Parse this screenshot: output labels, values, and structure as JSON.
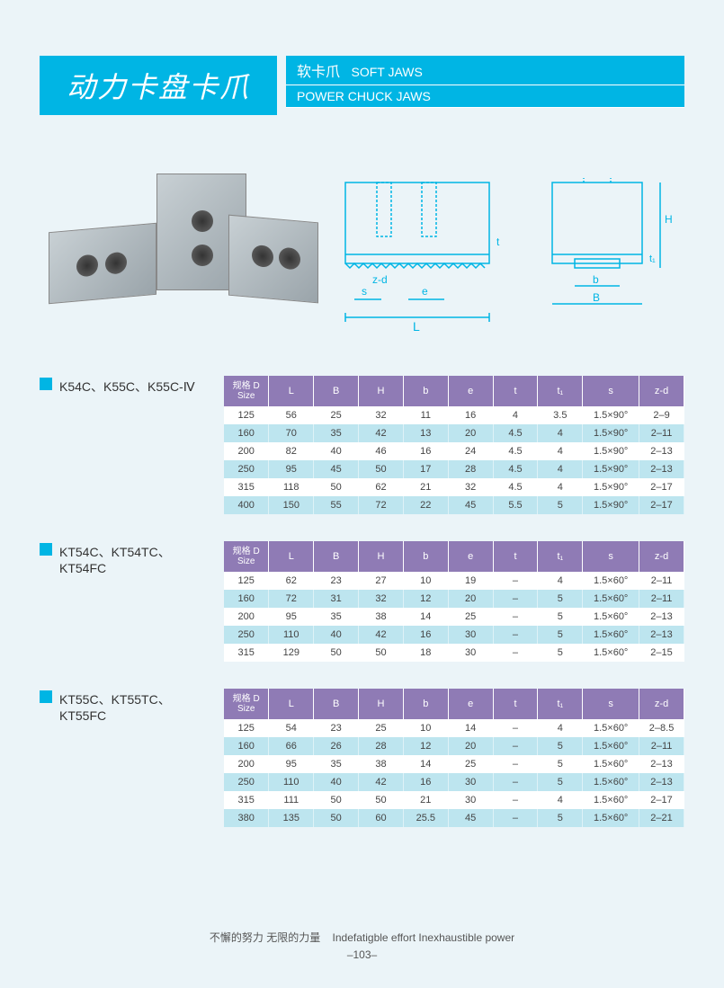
{
  "header": {
    "main_title": "动力卡盘卡爪",
    "sub1_cn": "软卡爪",
    "sub1_en": "SOFT JAWS",
    "sub2": "POWER CHUCK JAWS"
  },
  "diagram_labels": {
    "t": "t",
    "zd": "z-d",
    "s": "s",
    "e": "e",
    "L": "L",
    "H": "H",
    "t1": "t₁",
    "b": "b",
    "B": "B"
  },
  "tables": [
    {
      "title": "K54C、K55C、K55C-Ⅳ",
      "columns": [
        "规格 D\nSize",
        "L",
        "B",
        "H",
        "b",
        "e",
        "t",
        "t₁",
        "s",
        "z-d"
      ],
      "col_widths": [
        "46",
        "46",
        "46",
        "46",
        "46",
        "46",
        "46",
        "46",
        "58",
        "46"
      ],
      "rows": [
        [
          "125",
          "56",
          "25",
          "32",
          "11",
          "16",
          "4",
          "3.5",
          "1.5×90°",
          "2–9"
        ],
        [
          "160",
          "70",
          "35",
          "42",
          "13",
          "20",
          "4.5",
          "4",
          "1.5×90°",
          "2–11"
        ],
        [
          "200",
          "82",
          "40",
          "46",
          "16",
          "24",
          "4.5",
          "4",
          "1.5×90°",
          "2–13"
        ],
        [
          "250",
          "95",
          "45",
          "50",
          "17",
          "28",
          "4.5",
          "4",
          "1.5×90°",
          "2–13"
        ],
        [
          "315",
          "118",
          "50",
          "62",
          "21",
          "32",
          "4.5",
          "4",
          "1.5×90°",
          "2–17"
        ],
        [
          "400",
          "150",
          "55",
          "72",
          "22",
          "45",
          "5.5",
          "5",
          "1.5×90°",
          "2–17"
        ]
      ]
    },
    {
      "title": "KT54C、KT54TC、KT54FC",
      "columns": [
        "规格 D\nSize",
        "L",
        "B",
        "H",
        "b",
        "e",
        "t",
        "t₁",
        "s",
        "z-d"
      ],
      "col_widths": [
        "46",
        "46",
        "46",
        "46",
        "46",
        "46",
        "46",
        "46",
        "58",
        "46"
      ],
      "rows": [
        [
          "125",
          "62",
          "23",
          "27",
          "10",
          "19",
          "–",
          "4",
          "1.5×60°",
          "2–11"
        ],
        [
          "160",
          "72",
          "31",
          "32",
          "12",
          "20",
          "–",
          "5",
          "1.5×60°",
          "2–11"
        ],
        [
          "200",
          "95",
          "35",
          "38",
          "14",
          "25",
          "–",
          "5",
          "1.5×60°",
          "2–13"
        ],
        [
          "250",
          "110",
          "40",
          "42",
          "16",
          "30",
          "–",
          "5",
          "1.5×60°",
          "2–13"
        ],
        [
          "315",
          "129",
          "50",
          "50",
          "18",
          "30",
          "–",
          "5",
          "1.5×60°",
          "2–15"
        ]
      ]
    },
    {
      "title": "KT55C、KT55TC、KT55FC",
      "columns": [
        "规格 D\nSize",
        "L",
        "B",
        "H",
        "b",
        "e",
        "t",
        "t₁",
        "s",
        "z-d"
      ],
      "col_widths": [
        "46",
        "46",
        "46",
        "46",
        "46",
        "46",
        "46",
        "46",
        "58",
        "46"
      ],
      "rows": [
        [
          "125",
          "54",
          "23",
          "25",
          "10",
          "14",
          "–",
          "4",
          "1.5×60°",
          "2–8.5"
        ],
        [
          "160",
          "66",
          "26",
          "28",
          "12",
          "20",
          "–",
          "5",
          "1.5×60°",
          "2–11"
        ],
        [
          "200",
          "95",
          "35",
          "38",
          "14",
          "25",
          "–",
          "5",
          "1.5×60°",
          "2–13"
        ],
        [
          "250",
          "110",
          "40",
          "42",
          "16",
          "30",
          "–",
          "5",
          "1.5×60°",
          "2–13"
        ],
        [
          "315",
          "111",
          "50",
          "50",
          "21",
          "30",
          "–",
          "4",
          "1.5×60°",
          "2–17"
        ],
        [
          "380",
          "135",
          "50",
          "60",
          "25.5",
          "45",
          "–",
          "5",
          "1.5×60°",
          "2–21"
        ]
      ]
    }
  ],
  "footer": {
    "slogan_cn": "不懈的努力  无限的力量",
    "slogan_en": "Indefatigble effort  Inexhaustible power",
    "page": "–103–"
  },
  "colors": {
    "brand": "#00b5e4",
    "table_header": "#8f7bb5",
    "row_even": "#bde5ef",
    "row_odd": "#ffffff",
    "page_bg": "#ebf4f8"
  }
}
